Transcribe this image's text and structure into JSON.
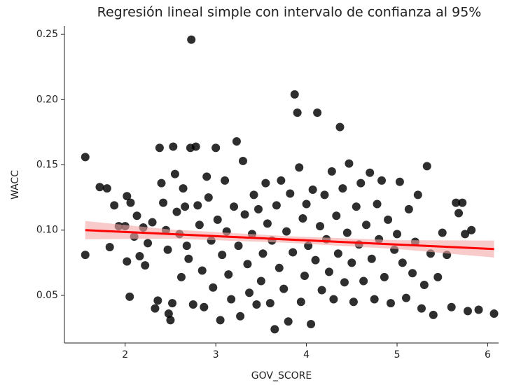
{
  "chart_data": {
    "type": "scatter",
    "title": "Regresión lineal simple con intervalo de confianza al 95%",
    "xlabel": "GOV_SCORE",
    "ylabel": "WACC",
    "xlim": [
      1.33,
      6.12
    ],
    "ylim": [
      0.0135,
      0.2565
    ],
    "xticks": [
      2,
      3,
      4,
      5,
      6
    ],
    "yticks": [
      0.05,
      {
        "value": 0.1,
        "label": "0.10"
      },
      0.15,
      {
        "value": 0.2,
        "label": "0.20"
      },
      0.25
    ],
    "color": "#000000",
    "line_color": "#ff0000",
    "band_color": "#f4a6a6",
    "x": [
      1.56,
      1.56,
      1.72,
      1.8,
      1.83,
      1.88,
      1.93,
      2.0,
      2.02,
      2.06,
      2.02,
      2.05,
      2.1,
      2.13,
      2.16,
      2.2,
      2.22,
      2.25,
      2.3,
      2.33,
      2.36,
      2.38,
      2.4,
      2.42,
      2.45,
      2.47,
      2.48,
      2.5,
      2.52,
      2.53,
      2.55,
      2.57,
      2.6,
      2.62,
      2.64,
      2.66,
      2.68,
      2.7,
      2.72,
      2.73,
      2.75,
      2.78,
      2.8,
      2.82,
      2.85,
      2.87,
      2.9,
      2.92,
      2.95,
      2.97,
      3.0,
      3.02,
      3.05,
      3.07,
      3.1,
      3.12,
      3.14,
      3.17,
      3.2,
      3.23,
      3.25,
      3.27,
      3.3,
      3.32,
      3.35,
      3.37,
      3.4,
      3.42,
      3.45,
      3.47,
      3.5,
      3.52,
      3.55,
      3.57,
      3.6,
      3.62,
      3.65,
      3.67,
      3.7,
      3.72,
      3.75,
      3.78,
      3.8,
      3.82,
      3.85,
      3.87,
      3.9,
      3.92,
      3.94,
      3.96,
      3.98,
      4.0,
      4.02,
      4.05,
      4.07,
      4.1,
      4.12,
      4.15,
      4.17,
      4.2,
      4.22,
      4.25,
      4.28,
      4.3,
      4.33,
      4.35,
      4.37,
      4.4,
      4.42,
      4.45,
      4.47,
      4.5,
      4.52,
      4.55,
      4.58,
      4.6,
      4.63,
      4.66,
      4.7,
      4.72,
      4.75,
      4.78,
      4.8,
      4.83,
      4.86,
      4.9,
      4.93,
      4.97,
      5.0,
      5.03,
      5.06,
      5.1,
      5.13,
      5.17,
      5.2,
      5.23,
      5.27,
      5.3,
      5.33,
      5.37,
      5.4,
      5.45,
      5.5,
      5.55,
      5.6,
      5.65,
      5.68,
      5.72,
      5.75,
      5.78,
      5.82,
      5.9,
      6.07
    ],
    "y": [
      0.156,
      0.081,
      0.133,
      0.132,
      0.087,
      0.119,
      0.103,
      0.103,
      0.126,
      0.121,
      0.076,
      0.049,
      0.095,
      0.111,
      0.08,
      0.102,
      0.073,
      0.09,
      0.106,
      0.04,
      0.046,
      0.163,
      0.136,
      0.121,
      0.1,
      0.085,
      0.036,
      0.031,
      0.044,
      0.164,
      0.143,
      0.114,
      0.097,
      0.064,
      0.132,
      0.118,
      0.088,
      0.078,
      0.163,
      0.246,
      0.043,
      0.164,
      0.119,
      0.104,
      0.069,
      0.041,
      0.141,
      0.125,
      0.092,
      0.056,
      0.163,
      0.108,
      0.031,
      0.081,
      0.138,
      0.099,
      0.066,
      0.047,
      0.118,
      0.168,
      0.088,
      0.034,
      0.153,
      0.112,
      0.074,
      0.052,
      0.097,
      0.127,
      0.043,
      0.116,
      0.061,
      0.082,
      0.136,
      0.105,
      0.044,
      0.092,
      0.024,
      0.119,
      0.071,
      0.138,
      0.055,
      0.099,
      0.03,
      0.128,
      0.083,
      0.204,
      0.19,
      0.148,
      0.045,
      0.109,
      0.065,
      0.12,
      0.088,
      0.028,
      0.131,
      0.077,
      0.19,
      0.103,
      0.054,
      0.127,
      0.093,
      0.068,
      0.145,
      0.047,
      0.111,
      0.082,
      0.179,
      0.132,
      0.06,
      0.098,
      0.151,
      0.075,
      0.045,
      0.118,
      0.089,
      0.136,
      0.061,
      0.104,
      0.144,
      0.078,
      0.047,
      0.12,
      0.093,
      0.138,
      0.064,
      0.108,
      0.044,
      0.085,
      0.097,
      0.137,
      0.075,
      0.048,
      0.116,
      0.067,
      0.091,
      0.127,
      0.04,
      0.058,
      0.149,
      0.082,
      0.035,
      0.064,
      0.098,
      0.081,
      0.041,
      0.121,
      0.113,
      0.121,
      0.097,
      0.038,
      0.1,
      0.039,
      0.036
    ],
    "regression": {
      "x": [
        1.56,
        6.07
      ],
      "y": [
        0.1,
        0.0855
      ]
    },
    "ci": {
      "x": [
        1.56,
        2.5,
        3.8,
        5.0,
        6.07
      ],
      "lower": [
        0.093,
        0.0935,
        0.0903,
        0.0855,
        0.079
      ],
      "upper": [
        0.107,
        0.1005,
        0.0953,
        0.0923,
        0.092
      ]
    }
  }
}
